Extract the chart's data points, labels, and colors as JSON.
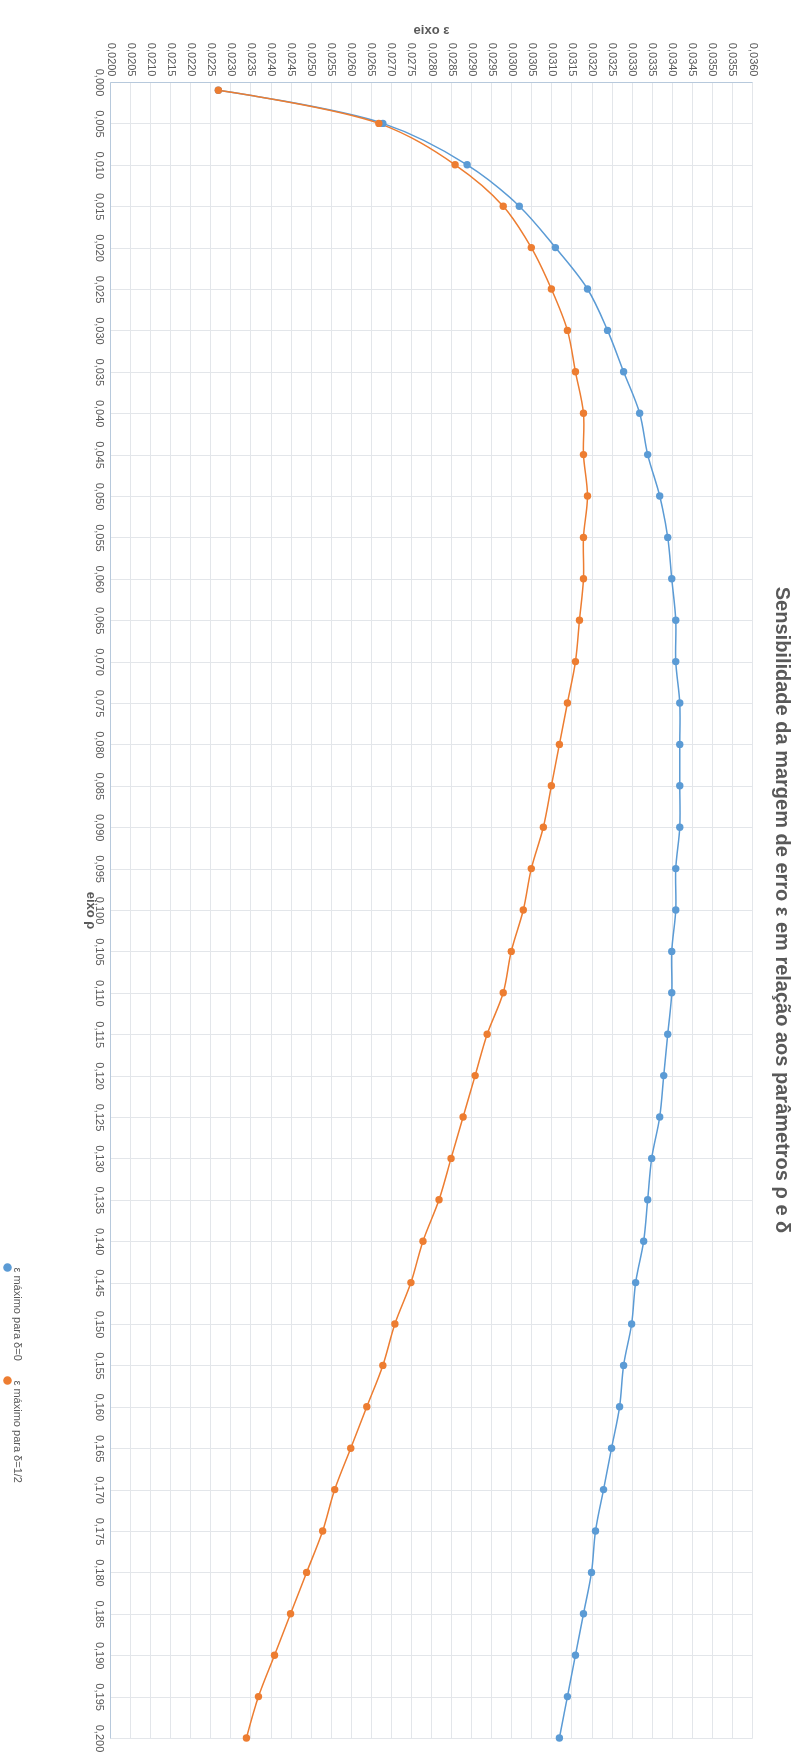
{
  "chart_data": {
    "type": "line",
    "title": "Sensibilidade da margem de erro ε em relação aos parâmetros ρ e δ",
    "xlabel": "eixo ε",
    "ylabel": "eixo ρ",
    "series": [
      {
        "name": "ε máximo para δ=0",
        "color": "#5b9bd5",
        "x": [
          0.0227,
          0.0268,
          0.0289,
          0.0302,
          0.0311,
          0.0319,
          0.0324,
          0.0328,
          0.0332,
          0.0334,
          0.0337,
          0.0339,
          0.034,
          0.0341,
          0.0341,
          0.0342,
          0.0342,
          0.0342,
          0.0342,
          0.0341,
          0.0341,
          0.034,
          0.034,
          0.0339,
          0.0338,
          0.0337,
          0.0335,
          0.0334,
          0.0333,
          0.0331,
          0.033,
          0.0328,
          0.0327,
          0.0325,
          0.0323,
          0.0321,
          0.032,
          0.0318,
          0.0316,
          0.0314,
          0.0312
        ],
        "values": [
          0.001,
          0.005,
          0.01,
          0.015,
          0.02,
          0.025,
          0.03,
          0.035,
          0.04,
          0.045,
          0.05,
          0.055,
          0.06,
          0.065,
          0.07,
          0.075,
          0.08,
          0.085,
          0.09,
          0.095,
          0.1,
          0.105,
          0.11,
          0.115,
          0.12,
          0.125,
          0.13,
          0.135,
          0.14,
          0.145,
          0.15,
          0.155,
          0.16,
          0.165,
          0.17,
          0.175,
          0.18,
          0.185,
          0.19,
          0.195,
          0.2
        ]
      },
      {
        "name": "ε máximo para δ=1/2",
        "color": "#ed7d31",
        "x": [
          0.0227,
          0.0267,
          0.0286,
          0.0298,
          0.0305,
          0.031,
          0.0314,
          0.0316,
          0.0318,
          0.0318,
          0.0319,
          0.0318,
          0.0318,
          0.0317,
          0.0316,
          0.0314,
          0.0312,
          0.031,
          0.0308,
          0.0305,
          0.0303,
          0.03,
          0.0298,
          0.0294,
          0.0291,
          0.0288,
          0.0285,
          0.0282,
          0.0278,
          0.0275,
          0.0271,
          0.0268,
          0.0264,
          0.026,
          0.0256,
          0.0253,
          0.0249,
          0.0245,
          0.0241,
          0.0237,
          0.0234
        ],
        "values": [
          0.001,
          0.005,
          0.01,
          0.015,
          0.02,
          0.025,
          0.03,
          0.035,
          0.04,
          0.045,
          0.05,
          0.055,
          0.06,
          0.065,
          0.07,
          0.075,
          0.08,
          0.085,
          0.09,
          0.095,
          0.1,
          0.105,
          0.11,
          0.115,
          0.12,
          0.125,
          0.13,
          0.135,
          0.14,
          0.145,
          0.15,
          0.155,
          0.16,
          0.165,
          0.17,
          0.175,
          0.18,
          0.185,
          0.19,
          0.195,
          0.2
        ]
      }
    ],
    "xlim": [
      0.02,
      0.036
    ],
    "xticks": [
      {
        "value": 0.02,
        "label": "0,0200"
      },
      {
        "value": 0.0205,
        "label": "0,0205"
      },
      {
        "value": 0.021,
        "label": "0,0210"
      },
      {
        "value": 0.0215,
        "label": "0,0215"
      },
      {
        "value": 0.022,
        "label": "0,0220"
      },
      {
        "value": 0.0225,
        "label": "0,0225"
      },
      {
        "value": 0.023,
        "label": "0,0230"
      },
      {
        "value": 0.0235,
        "label": "0,0235"
      },
      {
        "value": 0.024,
        "label": "0,0240"
      },
      {
        "value": 0.0245,
        "label": "0,0245"
      },
      {
        "value": 0.025,
        "label": "0,0250"
      },
      {
        "value": 0.0255,
        "label": "0,0255"
      },
      {
        "value": 0.026,
        "label": "0,0260"
      },
      {
        "value": 0.0265,
        "label": "0,0265"
      },
      {
        "value": 0.027,
        "label": "0,0270"
      },
      {
        "value": 0.0275,
        "label": "0,0275"
      },
      {
        "value": 0.028,
        "label": "0,0280"
      },
      {
        "value": 0.0285,
        "label": "0,0285"
      },
      {
        "value": 0.029,
        "label": "0,0290"
      },
      {
        "value": 0.0295,
        "label": "0,0295"
      },
      {
        "value": 0.03,
        "label": "0,0300"
      },
      {
        "value": 0.0305,
        "label": "0,0305"
      },
      {
        "value": 0.031,
        "label": "0,0310"
      },
      {
        "value": 0.0315,
        "label": "0,0315"
      },
      {
        "value": 0.032,
        "label": "0,0320"
      },
      {
        "value": 0.0325,
        "label": "0,0325"
      },
      {
        "value": 0.033,
        "label": "0,0330"
      },
      {
        "value": 0.0335,
        "label": "0,0335"
      },
      {
        "value": 0.034,
        "label": "0,0340"
      },
      {
        "value": 0.0345,
        "label": "0,0345"
      },
      {
        "value": 0.035,
        "label": "0,0350"
      },
      {
        "value": 0.0355,
        "label": "0,0355"
      },
      {
        "value": 0.036,
        "label": "0,0360"
      }
    ],
    "ylim": [
      0.2,
      0
    ],
    "yticks": [
      {
        "value": 0,
        "label": "0,000"
      },
      {
        "value": 0.005,
        "label": "0,005"
      },
      {
        "value": 0.01,
        "label": "0,010"
      },
      {
        "value": 0.015,
        "label": "0,015"
      },
      {
        "value": 0.02,
        "label": "0,020"
      },
      {
        "value": 0.025,
        "label": "0,025"
      },
      {
        "value": 0.03,
        "label": "0,030"
      },
      {
        "value": 0.035,
        "label": "0,035"
      },
      {
        "value": 0.04,
        "label": "0,040"
      },
      {
        "value": 0.045,
        "label": "0,045"
      },
      {
        "value": 0.05,
        "label": "0,050"
      },
      {
        "value": 0.055,
        "label": "0,055"
      },
      {
        "value": 0.06,
        "label": "0,060"
      },
      {
        "value": 0.065,
        "label": "0,065"
      },
      {
        "value": 0.07,
        "label": "0,070"
      },
      {
        "value": 0.075,
        "label": "0,075"
      },
      {
        "value": 0.08,
        "label": "0,080"
      },
      {
        "value": 0.085,
        "label": "0,085"
      },
      {
        "value": 0.09,
        "label": "0,090"
      },
      {
        "value": 0.095,
        "label": "0,095"
      },
      {
        "value": 0.1,
        "label": "0,100"
      },
      {
        "value": 0.105,
        "label": "0,105"
      },
      {
        "value": 0.11,
        "label": "0,110"
      },
      {
        "value": 0.115,
        "label": "0,115"
      },
      {
        "value": 0.12,
        "label": "0,120"
      },
      {
        "value": 0.125,
        "label": "0,125"
      },
      {
        "value": 0.13,
        "label": "0,130"
      },
      {
        "value": 0.135,
        "label": "0,135"
      },
      {
        "value": 0.14,
        "label": "0,140"
      },
      {
        "value": 0.145,
        "label": "0,145"
      },
      {
        "value": 0.15,
        "label": "0,150"
      },
      {
        "value": 0.155,
        "label": "0,155"
      },
      {
        "value": 0.16,
        "label": "0,160"
      },
      {
        "value": 0.165,
        "label": "0,165"
      },
      {
        "value": 0.17,
        "label": "0,170"
      },
      {
        "value": 0.175,
        "label": "0,175"
      },
      {
        "value": 0.18,
        "label": "0,180"
      },
      {
        "value": 0.185,
        "label": "0,185"
      },
      {
        "value": 0.19,
        "label": "0,190"
      },
      {
        "value": 0.195,
        "label": "0,195"
      },
      {
        "value": 0.2,
        "label": "0,200"
      }
    ],
    "grid": true,
    "legend": "left",
    "marker": "circle",
    "line_style": "solid"
  }
}
